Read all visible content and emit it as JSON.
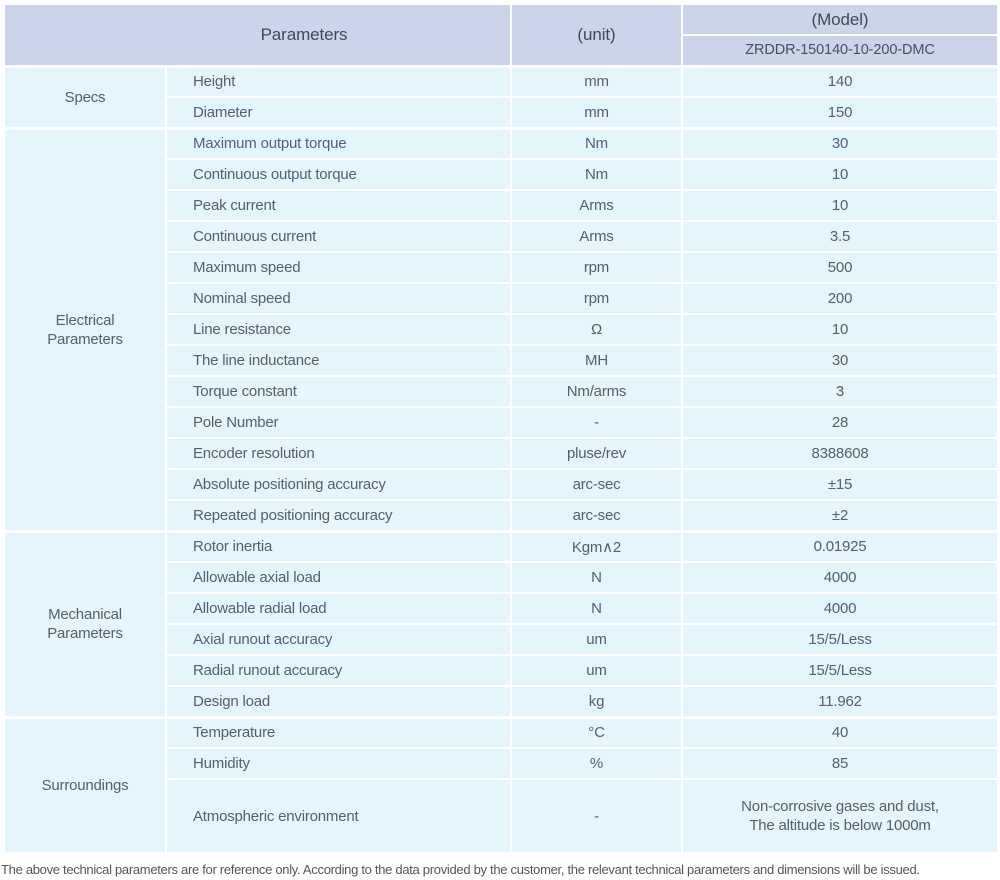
{
  "header": {
    "parameters_label": "Parameters",
    "unit_label": "(unit)",
    "model_label": "(Model)",
    "model_number": "ZRDDR-150140-10-200-DMC"
  },
  "sections": [
    {
      "group": "Specs",
      "rows": [
        {
          "name": "Height",
          "unit": "mm",
          "value": "140"
        },
        {
          "name": "Diameter",
          "unit": "mm",
          "value": "150"
        }
      ]
    },
    {
      "group": "Electrical\nParameters",
      "rows": [
        {
          "name": "Maximum output torque",
          "unit": "Nm",
          "value": "30"
        },
        {
          "name": "Continuous output torque",
          "unit": "Nm",
          "value": "10"
        },
        {
          "name": "Peak current",
          "unit": "Arms",
          "value": "10"
        },
        {
          "name": "Continuous current",
          "unit": "Arms",
          "value": "3.5"
        },
        {
          "name": "Maximum speed",
          "unit": "rpm",
          "value": "500"
        },
        {
          "name": "Nominal speed",
          "unit": "rpm",
          "value": "200"
        },
        {
          "name": "Line resistance",
          "unit": "Ω",
          "value": "10"
        },
        {
          "name": "The line inductance",
          "unit": "MH",
          "value": "30"
        },
        {
          "name": "Torque constant",
          "unit": "Nm/arms",
          "value": "3"
        },
        {
          "name": "Pole Number",
          "unit": "-",
          "value": "28"
        },
        {
          "name": "Encoder resolution",
          "unit": "pluse/rev",
          "value": "8388608"
        },
        {
          "name": "Absolute positioning accuracy",
          "unit": "arc-sec",
          "value": "±15"
        },
        {
          "name": "Repeated positioning accuracy",
          "unit": "arc-sec",
          "value": "±2"
        }
      ]
    },
    {
      "group": "Mechanical\nParameters",
      "rows": [
        {
          "name": "Rotor inertia",
          "unit": "Kgm∧2",
          "value": "0.01925"
        },
        {
          "name": "Allowable axial load",
          "unit": "N",
          "value": "4000"
        },
        {
          "name": "Allowable radial load",
          "unit": "N",
          "value": "4000"
        },
        {
          "name": "Axial runout accuracy",
          "unit": "um",
          "value": "15/5/Less"
        },
        {
          "name": "Radial runout accuracy",
          "unit": "um",
          "value": "15/5/Less"
        },
        {
          "name": "Design load",
          "unit": "kg",
          "value": "11.962"
        }
      ]
    },
    {
      "group": "Surroundings",
      "rows": [
        {
          "name": "Temperature",
          "unit": "°C",
          "value": "40"
        },
        {
          "name": "Humidity",
          "unit": "%",
          "value": "85"
        },
        {
          "name": "Atmospheric environment",
          "unit": "-",
          "value": "Non-corrosive gases and dust,\nThe altitude is below 1000m"
        }
      ]
    }
  ],
  "footer_note": "The above technical parameters are for reference only. According to the data provided by the customer, the relevant technical parameters and dimensions will be issued.",
  "colors": {
    "header_bg": "#ccd4e9",
    "row_bg": "#e4f5fc",
    "divider": "#ffffff",
    "header_text": "#3d4a59",
    "body_text": "#55606b"
  }
}
